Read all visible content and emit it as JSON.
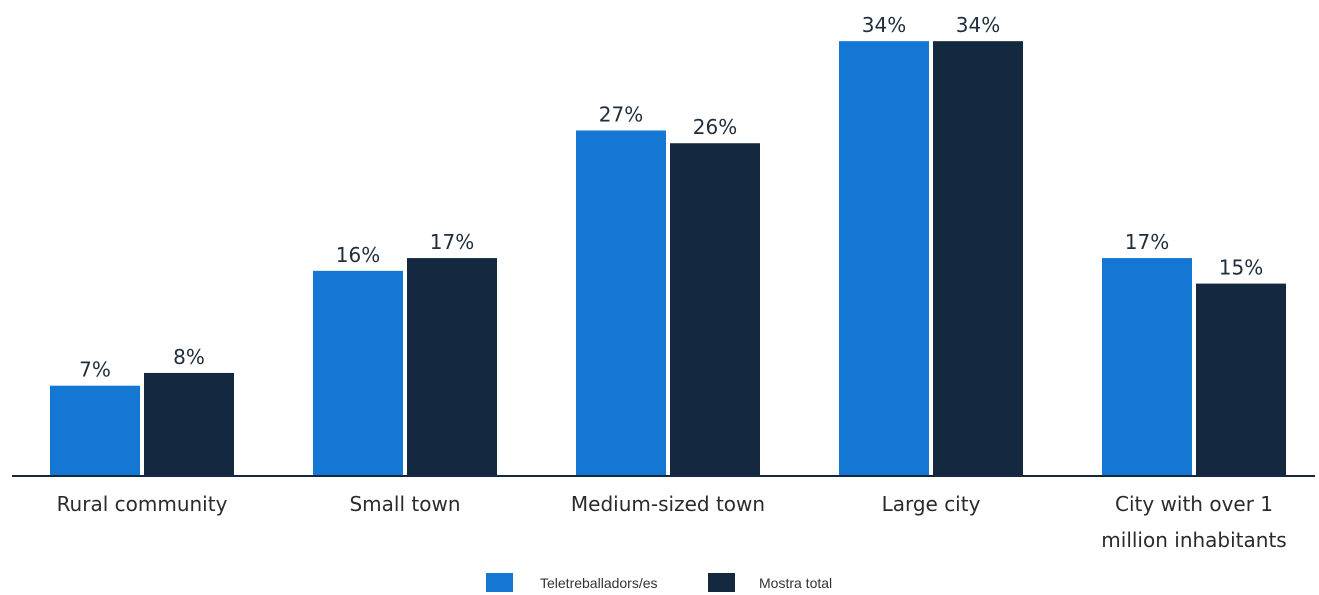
{
  "chart_data": {
    "type": "bar",
    "title": "",
    "xlabel": "",
    "ylabel": "",
    "categories": [
      [
        "Rural community"
      ],
      [
        "Small town"
      ],
      [
        "Medium-sized town"
      ],
      [
        "Large city"
      ],
      [
        "City with over 1",
        "million inhabitants"
      ]
    ],
    "series": [
      {
        "name": "Teletreballadors/es",
        "color": "#1577d4",
        "values": [
          7,
          16,
          27,
          34,
          17
        ],
        "labels": [
          "7%",
          "16%",
          "27%",
          "34%",
          "17%"
        ]
      },
      {
        "name": "Mostra total",
        "color": "#14283f",
        "values": [
          8,
          17,
          26,
          34,
          15
        ],
        "labels": [
          "8%",
          "17%",
          "26%",
          "34%",
          "15%"
        ]
      }
    ],
    "ylim": [
      0,
      35
    ],
    "unit": "%",
    "grid": false,
    "legend": "bottom-center",
    "axis_color": "#14283f"
  }
}
